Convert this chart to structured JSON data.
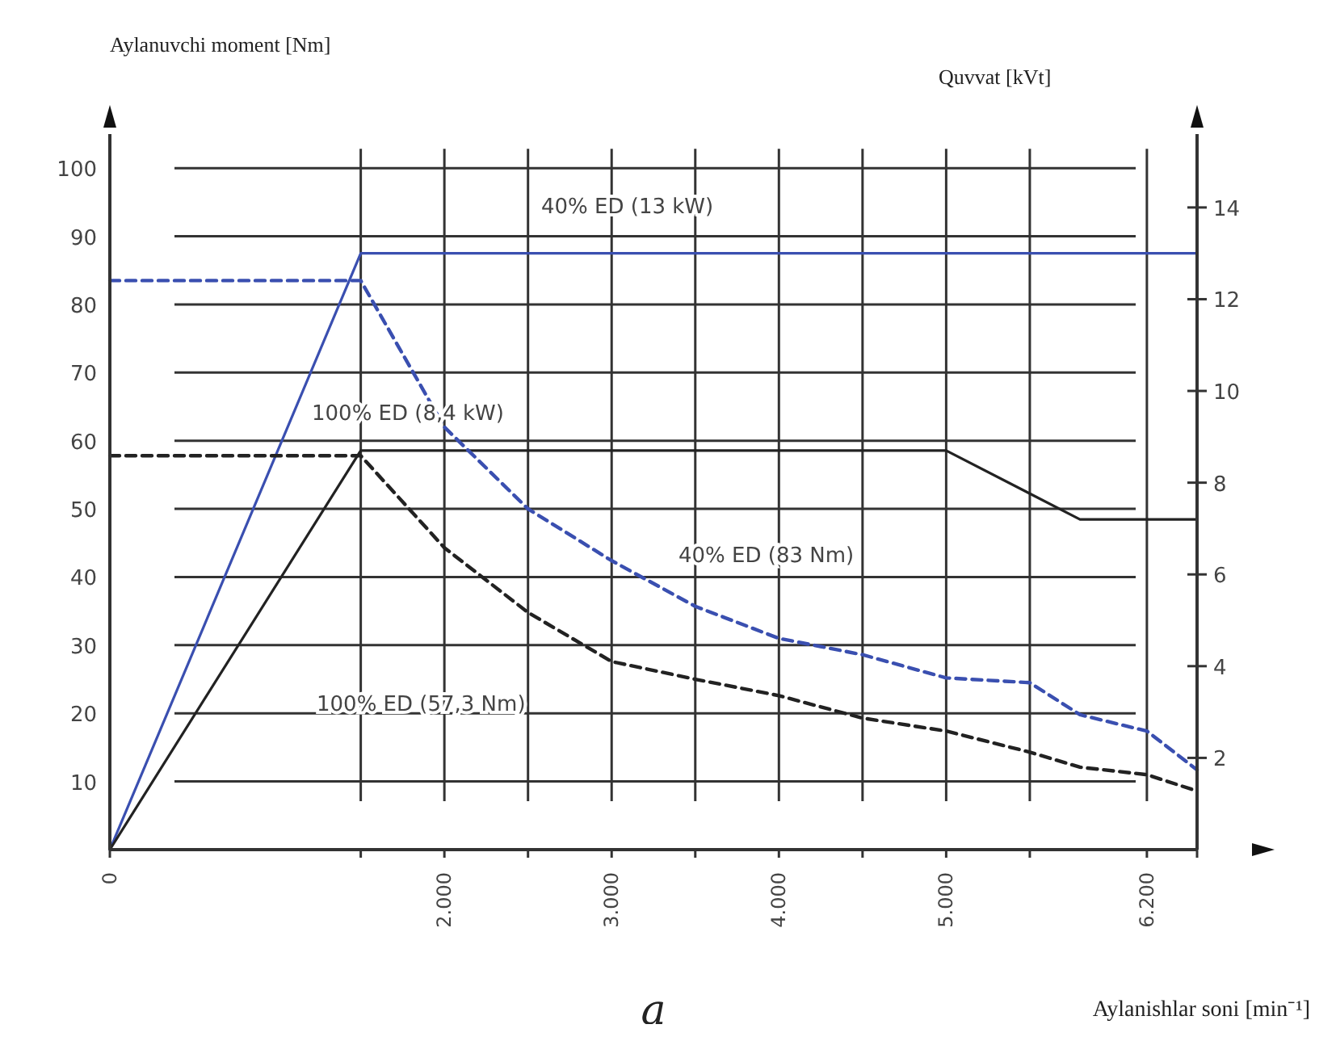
{
  "chart_data": {
    "type": "line",
    "xlabel": "Aylanishlar soni [min⁻¹]",
    "ylabel": "Aylanuvchi moment  [Nm]",
    "y2label": "Quvvat  [kVt]",
    "xlim": [
      0,
      6500
    ],
    "xticks": [
      0,
      {
        "value": 1500,
        "label": null
      },
      {
        "value": 2000,
        "label": "2.000"
      },
      {
        "value": 2500,
        "label": null
      },
      {
        "value": 3000,
        "label": "3.000"
      },
      {
        "value": 3500,
        "label": null
      },
      {
        "value": 4000,
        "label": "4.000"
      },
      {
        "value": 4500,
        "label": null
      },
      {
        "value": 5000,
        "label": "5.000"
      },
      {
        "value": 5500,
        "label": null
      },
      {
        "value": 6200,
        "label": "6.200"
      },
      {
        "value": 6500,
        "label": null
      }
    ],
    "ylim": [
      0,
      105
    ],
    "yticks": [
      10,
      20,
      30,
      40,
      50,
      60,
      70,
      80,
      90,
      100
    ],
    "y2lim": [
      0,
      15.6
    ],
    "y2ticks": [
      2,
      4,
      6,
      8,
      10,
      12,
      14
    ],
    "grid": true,
    "series": [
      {
        "color": "#3a4fb0",
        "axis": "y2",
        "line_style": "solid",
        "x": [
          0,
          1500,
          6500
        ],
        "values": [
          0,
          13,
          13
        ]
      },
      {
        "color": "#222222",
        "axis": "y2",
        "line_style": "solid",
        "x": [
          0,
          1500,
          5000,
          5800,
          6500
        ],
        "values": [
          0,
          8.7,
          8.7,
          7.2,
          7.2
        ]
      },
      {
        "color": "#3a4fb0",
        "line_style": "dashed",
        "x": [
          0,
          1500,
          2000,
          2500,
          3000,
          3500,
          4000,
          4500,
          5000,
          5500,
          5800,
          6200,
          6500
        ],
        "values": [
          83.5,
          83.5,
          62,
          50,
          42.4,
          35.7,
          31,
          28.6,
          25.2,
          24.5,
          19.8,
          17.4,
          11.7
        ]
      },
      {
        "color": "#222222",
        "line_style": "dashed",
        "x": [
          0,
          1500,
          2000,
          2500,
          3000,
          3500,
          4000,
          4500,
          5000,
          5500,
          5800,
          6200,
          6500
        ],
        "values": [
          57.8,
          57.8,
          44.3,
          34.8,
          27.6,
          25,
          22.6,
          19.3,
          17.4,
          14.3,
          12.1,
          11,
          8.6
        ]
      }
    ],
    "annotations": [
      "40% ED (13 kW)",
      "100% ED (8,4 kW)",
      "40% ED (83 Nm)",
      "100% ED (57,3 Nm)",
      "a"
    ]
  }
}
